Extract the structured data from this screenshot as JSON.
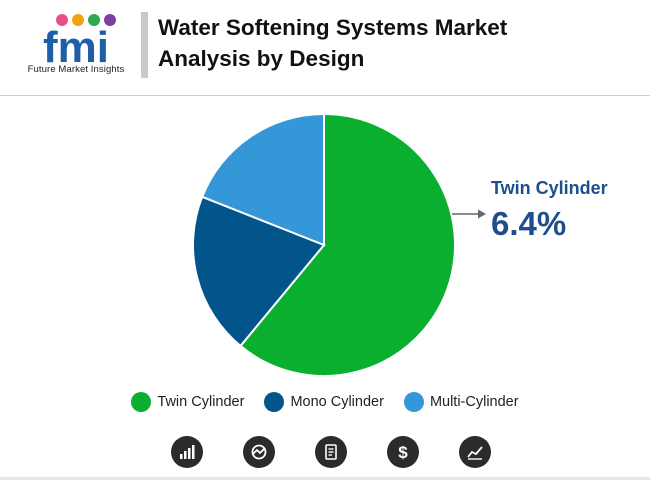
{
  "header": {
    "logo_text": "fmi",
    "logo_subtitle": "Future Market Insights",
    "title_line1": "Water Softening Systems Market",
    "title_line2": "Analysis by Design"
  },
  "colors": {
    "twin": "#0aaf2f",
    "mono": "#02558b",
    "multi": "#3497d8",
    "accent": "#1f4e8c",
    "logo_blue": "#1e5fa8"
  },
  "chart_data": {
    "type": "pie",
    "title": "Water Softening Systems Market Analysis by Design",
    "slices": [
      {
        "label": "Twin Cylinder",
        "value": 61,
        "color": "#0aaf2f"
      },
      {
        "label": "Mono Cylinder",
        "value": 20,
        "color": "#02558b"
      },
      {
        "label": "Multi-Cylinder",
        "value": 19,
        "color": "#3497d8"
      }
    ],
    "annotation": {
      "label": "Twin Cylinder",
      "value": "6.4%"
    },
    "legend_position": "bottom"
  },
  "legend": {
    "items": [
      {
        "label": "Twin Cylinder",
        "color": "#0aaf2f"
      },
      {
        "label": "Mono Cylinder",
        "color": "#02558b"
      },
      {
        "label": "Multi-Cylinder",
        "color": "#3497d8"
      }
    ]
  },
  "footer_icons": [
    "bar-chart-icon",
    "analytics-icon",
    "document-icon",
    "dollar-icon",
    "growth-chart-icon"
  ]
}
